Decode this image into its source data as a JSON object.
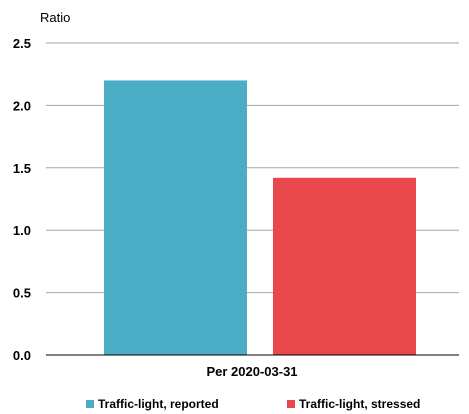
{
  "chart_data": {
    "type": "bar",
    "title": "",
    "ylabel": "Ratio",
    "xlabel": "",
    "categories": [
      "Per 2020-03-31"
    ],
    "series": [
      {
        "name": "Traffic-light, reported",
        "values": [
          2.2
        ],
        "color": "#4bacc6"
      },
      {
        "name": "Traffic-light, stressed",
        "values": [
          1.42
        ],
        "color": "#e8474c"
      }
    ],
    "ylim": [
      0,
      2.5
    ],
    "yticks": [
      "0.0",
      "0.5",
      "1.0",
      "1.5",
      "2.0",
      "2.5"
    ],
    "grid": true,
    "legend": "bottom"
  }
}
